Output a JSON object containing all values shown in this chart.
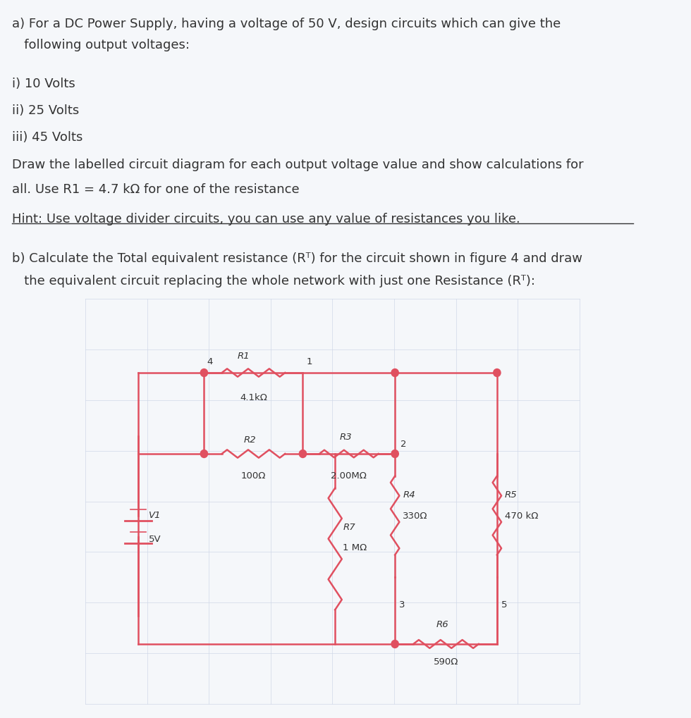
{
  "text_color": "#333333",
  "circuit_color": "#e05060",
  "grid_color": "#d0d8e8",
  "background_color": "#f5f7fa",
  "title_a_line1": "a) For a DC Power Supply, having a voltage of 50 V, design circuits which can give the",
  "title_a_line2": "   following output voltages:",
  "item_i": "i) 10 Volts",
  "item_ii": "ii) 25 Volts",
  "item_iii": "iii) 45 Volts",
  "draw_text1": "Draw the labelled circuit diagram for each output voltage value and show calculations for",
  "draw_text2": "all. Use R1 = 4.7 kΩ for one of the resistance",
  "hint_text": "Hint: Use voltage divider circuits, you can use any value of resistances you like.",
  "part_b_line1": "b) Calculate the Total equivalent resistance (Rᵀ) for the circuit shown in figure 4 and draw",
  "part_b_line2": "   the equivalent circuit replacing the whole network with just one Resistance (Rᵀ):",
  "label_R1": "R1",
  "label_R1_val": "4.1kΩ",
  "label_R2": "R2",
  "label_R2_val": "100Ω",
  "label_R3": "R3",
  "label_R3_val": "2.00MΩ",
  "label_R4": "R4",
  "label_R4_val": "330Ω",
  "label_R5": "R5",
  "label_R5_val": "470 kΩ",
  "label_R6": "R6",
  "label_R6_val": "590Ω",
  "label_R7": "R7",
  "label_R7_val": "1 MΩ",
  "label_V1": "V1",
  "label_V1_val": "5V",
  "node1": "1",
  "node2": "2",
  "node3": "3",
  "node4": "4",
  "node5": "5"
}
